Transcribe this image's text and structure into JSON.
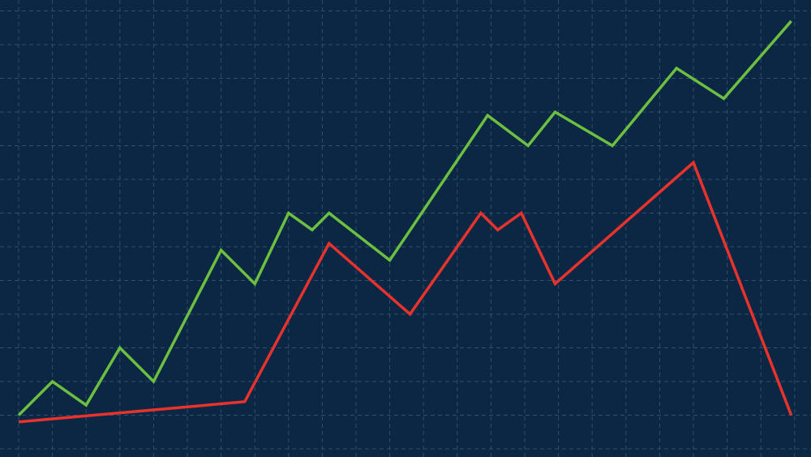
{
  "chart_data": {
    "type": "line",
    "title": "",
    "xlabel": "",
    "ylabel": "",
    "grid": true,
    "xlim": [
      0,
      23
    ],
    "ylim": [
      0,
      13
    ],
    "background_color": "#0b2744",
    "grid_color": "#2e4f70",
    "series": [
      {
        "color": "#6cbf3f",
        "x": [
          0,
          1.0,
          2.0,
          3.0,
          4.0,
          6.0,
          7.0,
          8.0,
          8.7,
          9.2,
          11.0,
          13.9,
          15.1,
          15.9,
          17.6,
          19.5,
          20.9,
          22.9
        ],
        "y": [
          1.0,
          2.0,
          1.3,
          3.0,
          2.0,
          5.9,
          4.9,
          7.0,
          6.5,
          7.0,
          5.6,
          9.9,
          9.0,
          10.0,
          9.0,
          11.3,
          10.4,
          12.7
        ]
      },
      {
        "color": "#e8332d",
        "x": [
          0,
          6.7,
          9.2,
          11.6,
          13.7,
          14.2,
          14.9,
          15.9,
          20.0,
          22.9
        ],
        "y": [
          0.8,
          1.4,
          6.1,
          4.0,
          7.0,
          6.5,
          7.0,
          4.9,
          8.5,
          1.0
        ]
      }
    ]
  }
}
